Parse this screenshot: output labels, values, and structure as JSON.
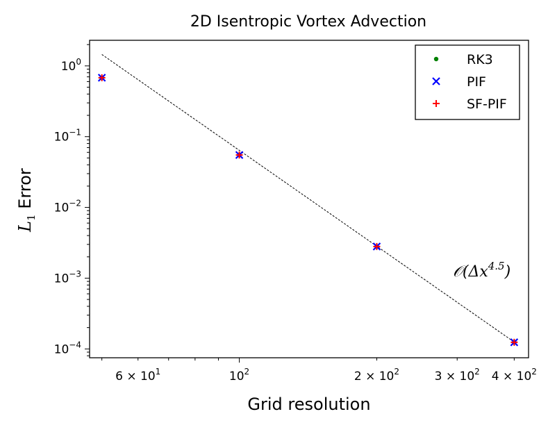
{
  "chart_data": {
    "type": "scatter",
    "title": "2D Isentropic Vortex Advection",
    "xlabel": "Grid resolution",
    "ylabel": "L1 Error",
    "xscale": "log",
    "yscale": "log",
    "xlim": [
      47,
      430
    ],
    "ylim": [
      7.5e-05,
      2.3
    ],
    "x_ticks": [
      {
        "value": 60,
        "label": "6 × 10^1"
      },
      {
        "value": 100,
        "label": "10^2"
      },
      {
        "value": 200,
        "label": "2 × 10^2"
      },
      {
        "value": 300,
        "label": "3 × 10^2"
      },
      {
        "value": 400,
        "label": "4 × 10^2"
      }
    ],
    "y_ticks": [
      {
        "value": 1,
        "label": "10^0"
      },
      {
        "value": 0.1,
        "label": "10^-1"
      },
      {
        "value": 0.01,
        "label": "10^-2"
      },
      {
        "value": 0.001,
        "label": "10^-3"
      },
      {
        "value": 0.0001,
        "label": "10^-4"
      }
    ],
    "series": [
      {
        "name": "RK3",
        "marker": "dot",
        "color": "#008000",
        "x": [
          50,
          100,
          200,
          400
        ],
        "y": [
          0.68,
          0.055,
          0.0028,
          0.000124
        ]
      },
      {
        "name": "PIF",
        "marker": "x",
        "color": "#0000ff",
        "x": [
          50,
          100,
          200,
          400
        ],
        "y": [
          0.68,
          0.055,
          0.0028,
          0.000124
        ]
      },
      {
        "name": "SF-PIF",
        "marker": "plus",
        "color": "#ff0000",
        "x": [
          50,
          100,
          200,
          400
        ],
        "y": [
          0.68,
          0.055,
          0.0028,
          0.000124
        ]
      }
    ],
    "reference_line": {
      "x": [
        50,
        400
      ],
      "y": [
        1.45,
        0.000125
      ],
      "style": "dashed",
      "color": "#000000"
    },
    "annotation": {
      "text": "O(Δx^4.5)",
      "base": "𝒪(Δx",
      "exponent": "4.5",
      "suffix": ")"
    },
    "legend": {
      "position": "top-right"
    }
  }
}
